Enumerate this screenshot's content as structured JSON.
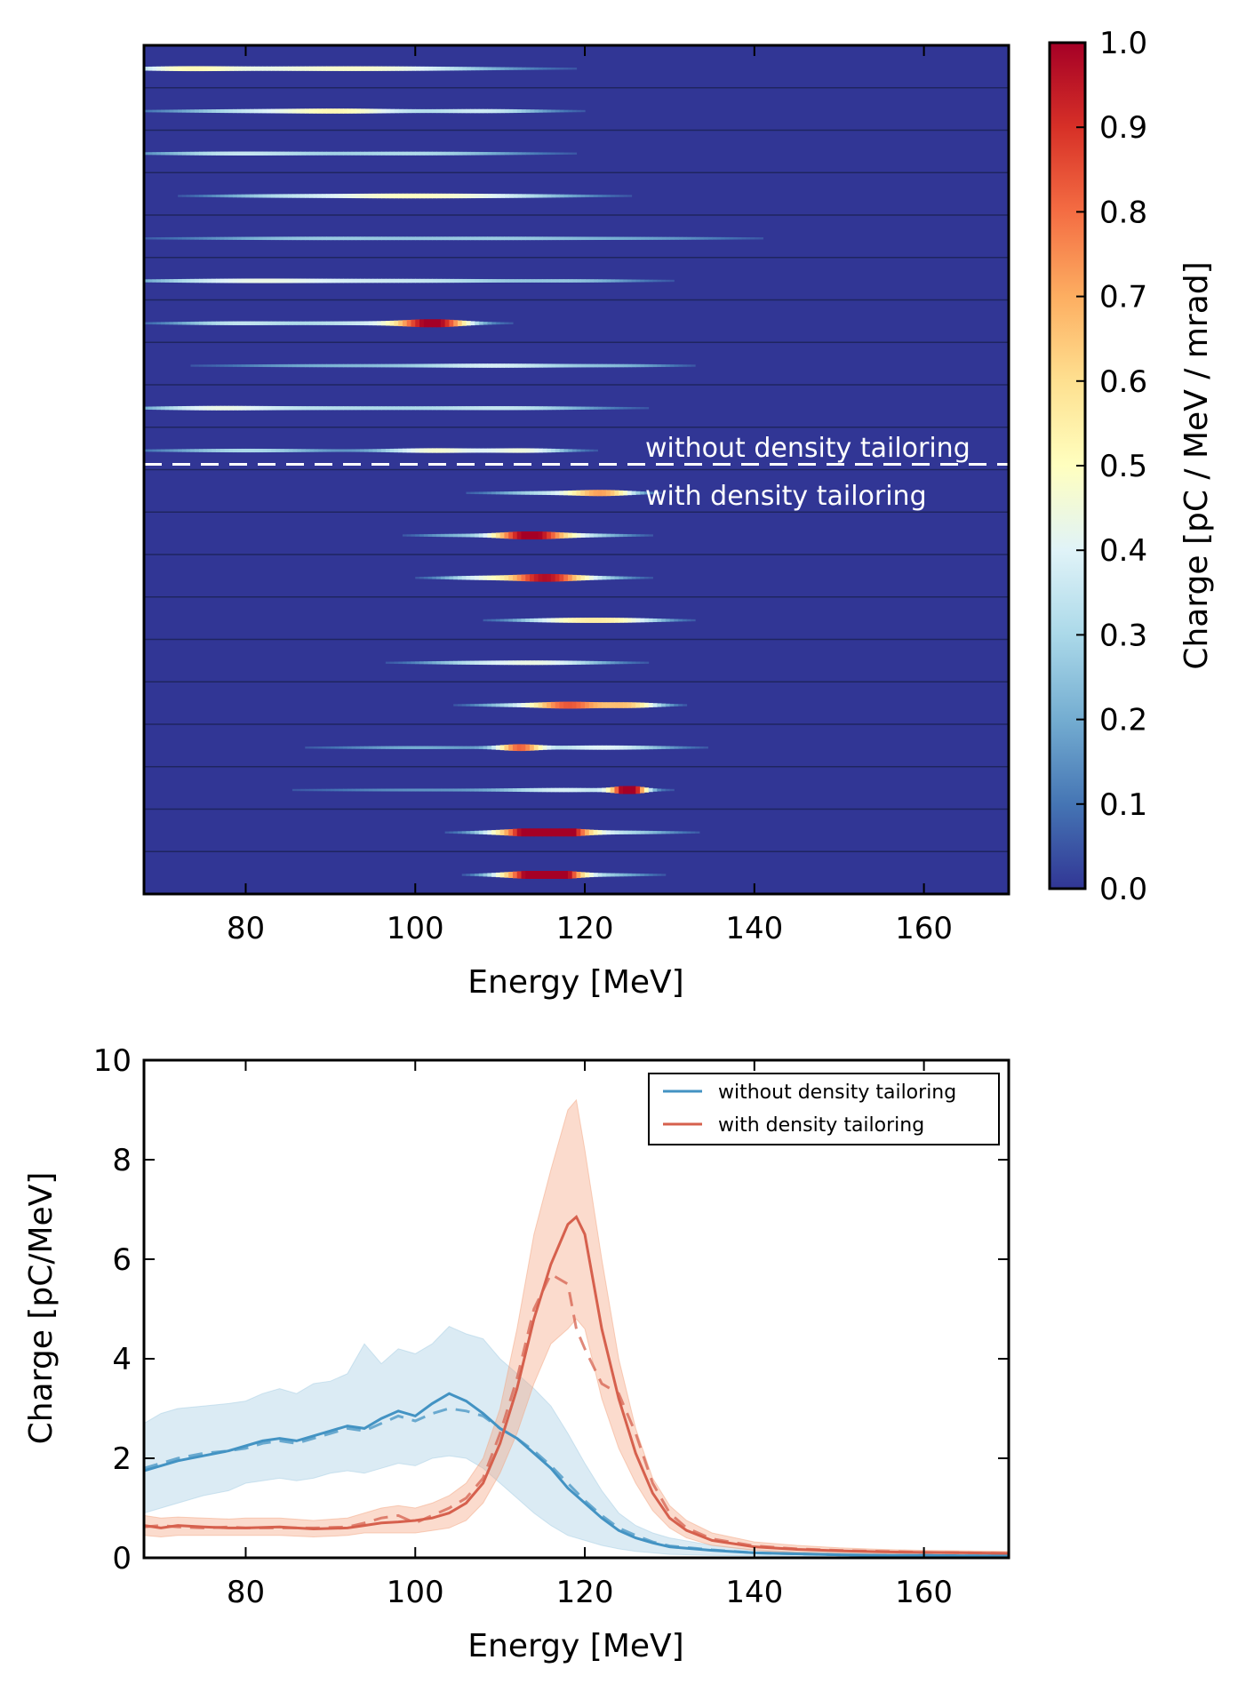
{
  "chart_data": [
    {
      "type": "heatmap",
      "xlabel": "Energy [MeV]",
      "xlim": [
        68,
        170
      ],
      "xticks": [
        "80",
        "100",
        "120",
        "140",
        "160"
      ],
      "n_rows": 20,
      "colorbar": {
        "label": "Charge [pC / MeV / mrad]",
        "lim": [
          0,
          1
        ],
        "ticks": [
          "0.0",
          "0.1",
          "0.2",
          "0.3",
          "0.4",
          "0.5",
          "0.6",
          "0.7",
          "0.8",
          "0.9",
          "1.0"
        ],
        "colormap": "RdYlBu_r",
        "colors": [
          "#313695",
          "#4575b4",
          "#74add1",
          "#abd9e9",
          "#e0f3f8",
          "#ffffbf",
          "#fee090",
          "#fdae61",
          "#f46d43",
          "#d73027",
          "#a50026"
        ]
      },
      "annotations": [
        "without density tailoring",
        "with density tailoring"
      ],
      "divider_after_row": 10,
      "rows": [
        {
          "group": "without density tailoring",
          "peaks": [
            {
              "e": 85,
              "w": 12,
              "a": 0.35
            },
            {
              "e": 100,
              "w": 10,
              "a": 0.25
            },
            {
              "e": 72,
              "w": 5,
              "a": 0.3
            }
          ]
        },
        {
          "group": "without density tailoring",
          "peaks": [
            {
              "e": 92,
              "w": 6,
              "a": 0.4
            },
            {
              "e": 80,
              "w": 8,
              "a": 0.3
            },
            {
              "e": 108,
              "w": 6,
              "a": 0.35
            }
          ]
        },
        {
          "group": "without density tailoring",
          "peaks": [
            {
              "e": 78,
              "w": 8,
              "a": 0.32
            },
            {
              "e": 100,
              "w": 10,
              "a": 0.3
            }
          ]
        },
        {
          "group": "without density tailoring",
          "peaks": [
            {
              "e": 96,
              "w": 8,
              "a": 0.4
            },
            {
              "e": 110,
              "w": 8,
              "a": 0.3
            },
            {
              "e": 82,
              "w": 6,
              "a": 0.2
            }
          ]
        },
        {
          "group": "without density tailoring",
          "peaks": [
            {
              "e": 88,
              "w": 12,
              "a": 0.25
            },
            {
              "e": 112,
              "w": 10,
              "a": 0.22
            },
            {
              "e": 130,
              "w": 8,
              "a": 0.12
            }
          ]
        },
        {
          "group": "without density tailoring",
          "peaks": [
            {
              "e": 80,
              "w": 10,
              "a": 0.4
            },
            {
              "e": 102,
              "w": 10,
              "a": 0.3
            },
            {
              "e": 120,
              "w": 6,
              "a": 0.18
            }
          ]
        },
        {
          "group": "without density tailoring",
          "peaks": [
            {
              "e": 102,
              "w": 3,
              "a": 0.8
            },
            {
              "e": 95,
              "w": 8,
              "a": 0.35
            },
            {
              "e": 78,
              "w": 6,
              "a": 0.3
            }
          ]
        },
        {
          "group": "without density tailoring",
          "peaks": [
            {
              "e": 110,
              "w": 8,
              "a": 0.35
            },
            {
              "e": 90,
              "w": 10,
              "a": 0.2
            },
            {
              "e": 125,
              "w": 5,
              "a": 0.15
            }
          ]
        },
        {
          "group": "without density tailoring",
          "peaks": [
            {
              "e": 90,
              "w": 12,
              "a": 0.3
            },
            {
              "e": 112,
              "w": 8,
              "a": 0.28
            },
            {
              "e": 75,
              "w": 6,
              "a": 0.28
            }
          ]
        },
        {
          "group": "without density tailoring",
          "peaks": [
            {
              "e": 102,
              "w": 5,
              "a": 0.45
            },
            {
              "e": 113,
              "w": 4,
              "a": 0.4
            },
            {
              "e": 80,
              "w": 8,
              "a": 0.3
            }
          ]
        },
        {
          "group": "with density tailoring",
          "peaks": [
            {
              "e": 122,
              "w": 3,
              "a": 0.6
            },
            {
              "e": 115,
              "w": 5,
              "a": 0.3
            }
          ]
        },
        {
          "group": "with density tailoring",
          "peaks": [
            {
              "e": 113,
              "w": 3,
              "a": 0.8
            },
            {
              "e": 118,
              "w": 5,
              "a": 0.35
            },
            {
              "e": 105,
              "w": 4,
              "a": 0.2
            }
          ]
        },
        {
          "group": "with density tailoring",
          "peaks": [
            {
              "e": 115,
              "w": 3,
              "a": 0.75
            },
            {
              "e": 108,
              "w": 4,
              "a": 0.4
            },
            {
              "e": 120,
              "w": 4,
              "a": 0.3
            }
          ]
        },
        {
          "group": "with density tailoring",
          "peaks": [
            {
              "e": 118,
              "w": 5,
              "a": 0.45
            },
            {
              "e": 125,
              "w": 4,
              "a": 0.3
            }
          ]
        },
        {
          "group": "with density tailoring",
          "peaks": [
            {
              "e": 115,
              "w": 6,
              "a": 0.4
            },
            {
              "e": 105,
              "w": 5,
              "a": 0.2
            }
          ]
        },
        {
          "group": "with density tailoring",
          "peaks": [
            {
              "e": 118,
              "w": 3,
              "a": 0.7
            },
            {
              "e": 125,
              "w": 3,
              "a": 0.6
            },
            {
              "e": 112,
              "w": 4,
              "a": 0.3
            }
          ]
        },
        {
          "group": "with density tailoring",
          "peaks": [
            {
              "e": 112,
              "w": 2,
              "a": 0.65
            },
            {
              "e": 122,
              "w": 6,
              "a": 0.4
            },
            {
              "e": 100,
              "w": 8,
              "a": 0.2
            }
          ]
        },
        {
          "group": "with density tailoring",
          "peaks": [
            {
              "e": 125,
              "w": 1.5,
              "a": 0.95
            },
            {
              "e": 118,
              "w": 6,
              "a": 0.35
            },
            {
              "e": 100,
              "w": 10,
              "a": 0.15
            }
          ]
        },
        {
          "group": "with density tailoring",
          "peaks": [
            {
              "e": 116,
              "w": 3,
              "a": 0.98
            },
            {
              "e": 112,
              "w": 4,
              "a": 0.55
            },
            {
              "e": 124,
              "w": 5,
              "a": 0.3
            }
          ]
        },
        {
          "group": "with density tailoring",
          "peaks": [
            {
              "e": 116,
              "w": 2.5,
              "a": 1.0
            },
            {
              "e": 112,
              "w": 3,
              "a": 0.6
            },
            {
              "e": 122,
              "w": 4,
              "a": 0.25
            }
          ]
        }
      ]
    },
    {
      "type": "line",
      "xlabel": "Energy [MeV]",
      "ylabel": "Charge [pC/MeV]",
      "xlim": [
        68,
        170
      ],
      "ylim": [
        0,
        10
      ],
      "xticks": [
        "80",
        "100",
        "120",
        "140",
        "160"
      ],
      "yticks": [
        "0",
        "2",
        "4",
        "6",
        "8",
        "10"
      ],
      "legend_position": "upper-right",
      "series": [
        {
          "name": "without density tailoring",
          "color": "#4393c3",
          "band_color": "#a6cee3",
          "x": [
            68,
            70,
            72,
            75,
            78,
            80,
            82,
            84,
            86,
            88,
            90,
            92,
            94,
            96,
            98,
            100,
            102,
            104,
            106,
            108,
            110,
            112,
            114,
            116,
            118,
            120,
            122,
            124,
            126,
            128,
            130,
            135,
            140,
            145,
            150,
            155,
            160,
            165,
            170
          ],
          "mean": [
            1.75,
            1.85,
            1.95,
            2.05,
            2.15,
            2.25,
            2.35,
            2.4,
            2.35,
            2.45,
            2.55,
            2.65,
            2.6,
            2.8,
            2.95,
            2.85,
            3.1,
            3.3,
            3.15,
            2.9,
            2.6,
            2.4,
            2.1,
            1.8,
            1.4,
            1.1,
            0.8,
            0.55,
            0.4,
            0.3,
            0.22,
            0.15,
            0.1,
            0.08,
            0.06,
            0.05,
            0.05,
            0.04,
            0.04
          ],
          "median": [
            1.8,
            1.9,
            2.0,
            2.1,
            2.15,
            2.2,
            2.3,
            2.35,
            2.3,
            2.4,
            2.5,
            2.6,
            2.55,
            2.7,
            2.85,
            2.75,
            2.9,
            3.0,
            2.95,
            2.85,
            2.6,
            2.4,
            2.15,
            1.85,
            1.5,
            1.15,
            0.85,
            0.6,
            0.45,
            0.32,
            0.24,
            0.16,
            0.1,
            0.08,
            0.06,
            0.05,
            0.05,
            0.04,
            0.04
          ],
          "upper": [
            2.7,
            2.9,
            3.0,
            3.05,
            3.1,
            3.15,
            3.3,
            3.4,
            3.3,
            3.5,
            3.55,
            3.7,
            4.3,
            3.9,
            4.2,
            4.1,
            4.3,
            4.65,
            4.5,
            4.4,
            4.0,
            3.7,
            3.4,
            3.05,
            2.5,
            1.9,
            1.35,
            0.9,
            0.65,
            0.5,
            0.4,
            0.25,
            0.16,
            0.12,
            0.1,
            0.08,
            0.07,
            0.06,
            0.06
          ],
          "lower": [
            0.9,
            1.0,
            1.1,
            1.25,
            1.35,
            1.5,
            1.55,
            1.6,
            1.55,
            1.6,
            1.7,
            1.75,
            1.7,
            1.8,
            1.9,
            1.85,
            2.0,
            2.05,
            2.0,
            1.8,
            1.5,
            1.2,
            0.9,
            0.65,
            0.45,
            0.35,
            0.25,
            0.18,
            0.13,
            0.1,
            0.07,
            0.05,
            0.04,
            0.03,
            0.02,
            0.02,
            0.02,
            0.02,
            0.02
          ]
        },
        {
          "name": "with density tailoring",
          "color": "#d6604d",
          "band_color": "#f4a582",
          "x": [
            68,
            70,
            72,
            75,
            78,
            80,
            84,
            88,
            92,
            94,
            96,
            98,
            100,
            102,
            104,
            106,
            108,
            110,
            112,
            114,
            116,
            118,
            119,
            120,
            122,
            124,
            126,
            128,
            130,
            132,
            135,
            140,
            145,
            150,
            155,
            160,
            165,
            170
          ],
          "mean": [
            0.65,
            0.6,
            0.65,
            0.62,
            0.6,
            0.6,
            0.62,
            0.58,
            0.6,
            0.65,
            0.7,
            0.72,
            0.75,
            0.8,
            0.9,
            1.1,
            1.5,
            2.3,
            3.4,
            4.8,
            5.9,
            6.7,
            6.85,
            6.5,
            4.6,
            3.2,
            2.1,
            1.3,
            0.8,
            0.55,
            0.35,
            0.22,
            0.17,
            0.14,
            0.12,
            0.11,
            0.1,
            0.09
          ],
          "median": [
            0.62,
            0.65,
            0.62,
            0.6,
            0.62,
            0.6,
            0.6,
            0.6,
            0.62,
            0.7,
            0.8,
            0.85,
            0.7,
            0.85,
            1.0,
            1.2,
            1.6,
            2.5,
            3.6,
            5.0,
            5.7,
            5.5,
            4.6,
            4.2,
            3.5,
            3.3,
            2.5,
            1.5,
            0.9,
            0.6,
            0.38,
            0.24,
            0.18,
            0.15,
            0.13,
            0.11,
            0.1,
            0.09
          ],
          "upper": [
            0.85,
            0.8,
            0.82,
            0.8,
            0.78,
            0.8,
            0.8,
            0.75,
            0.8,
            0.9,
            1.0,
            1.05,
            1.0,
            1.1,
            1.25,
            1.5,
            2.0,
            3.0,
            4.6,
            6.5,
            7.8,
            9.0,
            9.2,
            8.2,
            6.0,
            4.0,
            2.6,
            1.6,
            1.05,
            0.75,
            0.5,
            0.32,
            0.25,
            0.2,
            0.17,
            0.15,
            0.14,
            0.13
          ],
          "lower": [
            0.45,
            0.42,
            0.45,
            0.45,
            0.45,
            0.45,
            0.45,
            0.42,
            0.45,
            0.5,
            0.5,
            0.5,
            0.5,
            0.55,
            0.6,
            0.75,
            1.1,
            1.7,
            2.5,
            3.5,
            4.3,
            4.6,
            4.8,
            4.6,
            3.2,
            2.2,
            1.5,
            0.95,
            0.6,
            0.4,
            0.25,
            0.15,
            0.1,
            0.08,
            0.07,
            0.06,
            0.05,
            0.05
          ]
        }
      ]
    }
  ]
}
